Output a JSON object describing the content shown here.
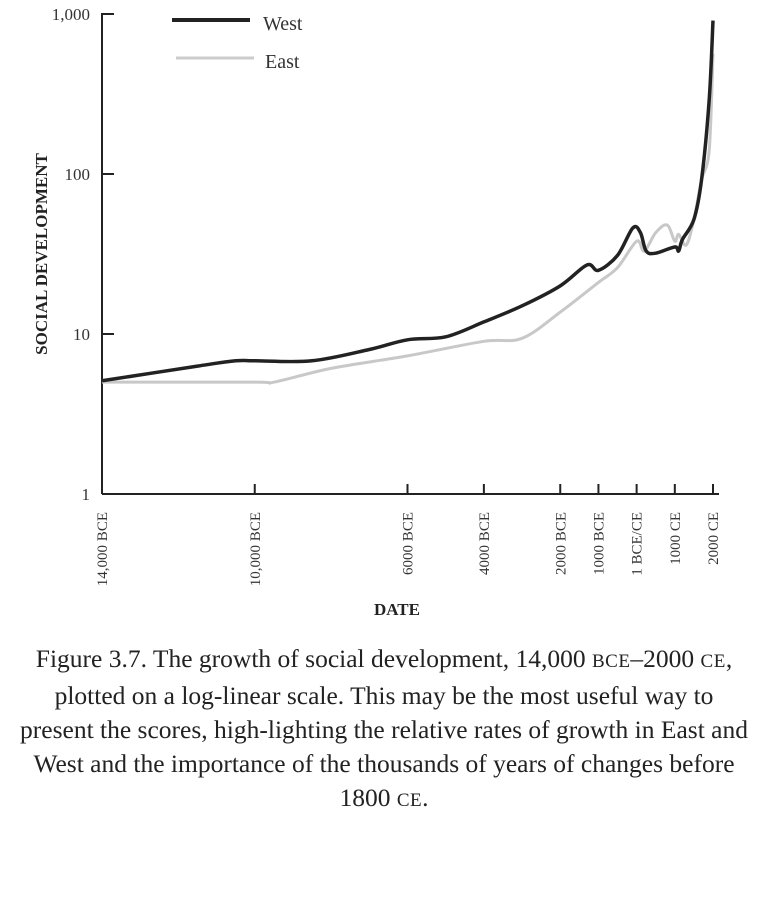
{
  "chart_data": {
    "type": "line",
    "ylabel": "SOCIAL DEVELOPMENT",
    "xlabel": "DATE",
    "y_scale": "log",
    "ylim": [
      1,
      1000
    ],
    "y_ticks": [
      1,
      10,
      100,
      1000
    ],
    "y_tick_labels": [
      "1",
      "10",
      "100",
      "1,000"
    ],
    "xlim": [
      -14000,
      2000
    ],
    "x_ticks": [
      -14000,
      -10000,
      -6000,
      -4000,
      -2000,
      -1000,
      0,
      1000,
      2000
    ],
    "x_tick_labels": [
      "14,000 BCE",
      "10,000 BCE",
      "6000 BCE",
      "4000 BCE",
      "2000 BCE",
      "1000 BCE",
      "1 BCE/CE",
      "1000 CE",
      "2000 CE"
    ],
    "legend_position": "top-left",
    "grid": false,
    "series": [
      {
        "name": "West",
        "color": "#222222",
        "x": [
          -14000,
          -11500,
          -10500,
          -10000,
          -8500,
          -7000,
          -6000,
          -5000,
          -4000,
          -3000,
          -2000,
          -1300,
          -1000,
          -500,
          -100,
          100,
          250,
          500,
          1000,
          1100,
          1200,
          1500,
          1700,
          1900,
          2000
        ],
        "y": [
          5.1,
          6.3,
          6.8,
          6.8,
          6.8,
          8.0,
          9.2,
          9.6,
          11.9,
          15,
          20,
          27,
          25,
          31,
          46,
          43,
          33,
          32,
          35,
          33,
          39,
          52,
          92,
          290,
          910
        ]
      },
      {
        "name": "East",
        "color": "#c8c8c8",
        "x": [
          -14000,
          -10000,
          -9500,
          -8000,
          -6000,
          -4000,
          -3000,
          -2000,
          -1000,
          -500,
          0,
          200,
          500,
          800,
          1000,
          1100,
          1300,
          1500,
          1700,
          1900,
          2000
        ],
        "y": [
          5.0,
          5.0,
          5.0,
          6.1,
          7.3,
          9.0,
          9.4,
          13.7,
          21,
          26,
          38,
          33,
          43,
          48,
          38,
          42,
          36,
          52,
          92,
          140,
          565
        ]
      }
    ]
  },
  "caption": {
    "part1": "Figure 3.7. The growth of social development, 14,000",
    "bce": "BCE",
    "part2": "–2000",
    "ce": "CE",
    "part3": ", plotted on a log-linear scale. This may be the most useful way to present the scores, high-lighting the relative rates of growth in East and West and the importance of the thousands of years of changes before 1800",
    "ce2": "CE",
    "end": "."
  }
}
